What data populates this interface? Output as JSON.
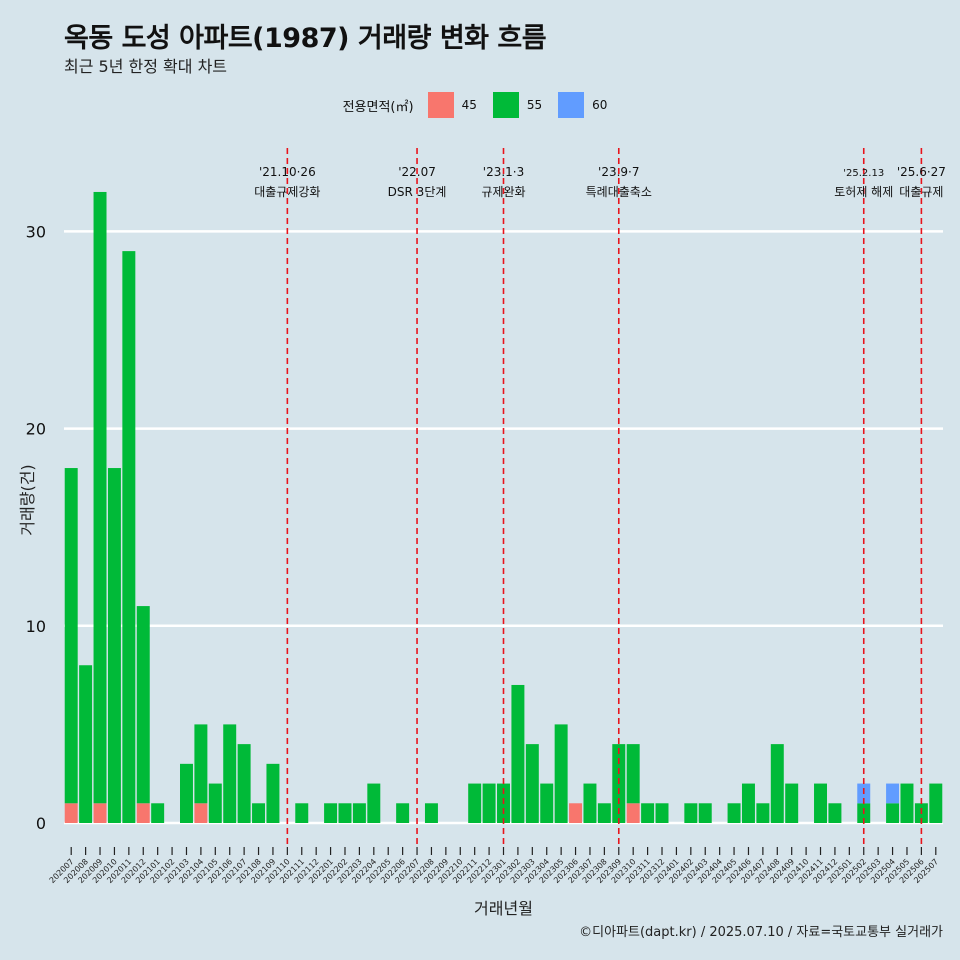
{
  "header": {
    "title": "옥동 도성 아파트(1987) 거래량 변화 흐름",
    "subtitle": "최근 5년 한정 확대 차트"
  },
  "legend": {
    "title": "전용면적(㎡)",
    "items": [
      {
        "label": "45",
        "color": "#f8766d"
      },
      {
        "label": "55",
        "color": "#00ba38"
      },
      {
        "label": "60",
        "color": "#619cff"
      }
    ]
  },
  "caption": "©디아파트(dapt.kr) / 2025.07.10 / 자료=국토교통부 실거래가",
  "chart_data": {
    "type": "bar",
    "xlabel": "거래년월",
    "ylabel": "거래량(건)",
    "ylim": [
      0,
      33
    ],
    "yticks": [
      0,
      10,
      20,
      30
    ],
    "grid": true,
    "legend_position": "top",
    "categories": [
      "202007",
      "202008",
      "202009",
      "202010",
      "202011",
      "202012",
      "202101",
      "202102",
      "202103",
      "202104",
      "202105",
      "202106",
      "202107",
      "202108",
      "202109",
      "202110",
      "202111",
      "202112",
      "202201",
      "202202",
      "202203",
      "202204",
      "202205",
      "202206",
      "202207",
      "202208",
      "202209",
      "202210",
      "202211",
      "202212",
      "202301",
      "202302",
      "202303",
      "202304",
      "202305",
      "202306",
      "202307",
      "202308",
      "202309",
      "202310",
      "202311",
      "202312",
      "202401",
      "202402",
      "202403",
      "202404",
      "202405",
      "202406",
      "202407",
      "202408",
      "202409",
      "202410",
      "202411",
      "202412",
      "202501",
      "202502",
      "202503",
      "202504",
      "202505",
      "202506",
      "202507"
    ],
    "series": [
      {
        "name": "45",
        "color": "#f8766d",
        "values": [
          1,
          0,
          1,
          0,
          0,
          1,
          0,
          0,
          0,
          1,
          0,
          0,
          0,
          0,
          0,
          0,
          0,
          0,
          0,
          0,
          0,
          0,
          0,
          0,
          0,
          0,
          0,
          0,
          0,
          0,
          0,
          0,
          0,
          0,
          0,
          1,
          0,
          0,
          0,
          1,
          0,
          0,
          0,
          0,
          0,
          0,
          0,
          0,
          0,
          0,
          0,
          0,
          0,
          0,
          0,
          0,
          0,
          0,
          0,
          0,
          0
        ]
      },
      {
        "name": "55",
        "color": "#00ba38",
        "values": [
          17,
          8,
          31,
          18,
          29,
          10,
          1,
          0,
          3,
          4,
          2,
          5,
          4,
          1,
          3,
          0,
          1,
          0,
          1,
          1,
          1,
          2,
          0,
          1,
          0,
          1,
          0,
          0,
          2,
          2,
          2,
          7,
          4,
          2,
          5,
          0,
          2,
          1,
          4,
          3,
          1,
          1,
          0,
          1,
          1,
          0,
          1,
          2,
          1,
          4,
          2,
          0,
          2,
          1,
          0,
          1,
          0,
          1,
          2,
          1,
          2
        ]
      },
      {
        "name": "60",
        "color": "#619cff",
        "values": [
          0,
          0,
          0,
          0,
          0,
          0,
          0,
          0,
          0,
          0,
          0,
          0,
          0,
          0,
          0,
          0,
          0,
          0,
          0,
          0,
          0,
          0,
          0,
          0,
          0,
          0,
          0,
          0,
          0,
          0,
          0,
          0,
          0,
          0,
          0,
          0,
          0,
          0,
          0,
          0,
          0,
          0,
          0,
          0,
          0,
          0,
          0,
          0,
          0,
          0,
          0,
          0,
          0,
          0,
          0,
          1,
          0,
          1,
          0,
          0,
          0
        ]
      }
    ],
    "events": [
      {
        "at": "202110",
        "line1": "'21.10·26",
        "line2": "대출규제강화"
      },
      {
        "at": "202207",
        "line1": "'22.07",
        "line2": "DSR 3단계"
      },
      {
        "at": "202301",
        "line1": "'23.1·3",
        "line2": "규제완화"
      },
      {
        "at": "202309",
        "line1": "'23.9·7",
        "line2": "특례대출축소"
      },
      {
        "at": "202502",
        "line1": "'25.2.13",
        "line2": "토허제 해제"
      },
      {
        "at": "202506",
        "line1": "'25.6·27",
        "line2": "대출규제"
      }
    ]
  }
}
